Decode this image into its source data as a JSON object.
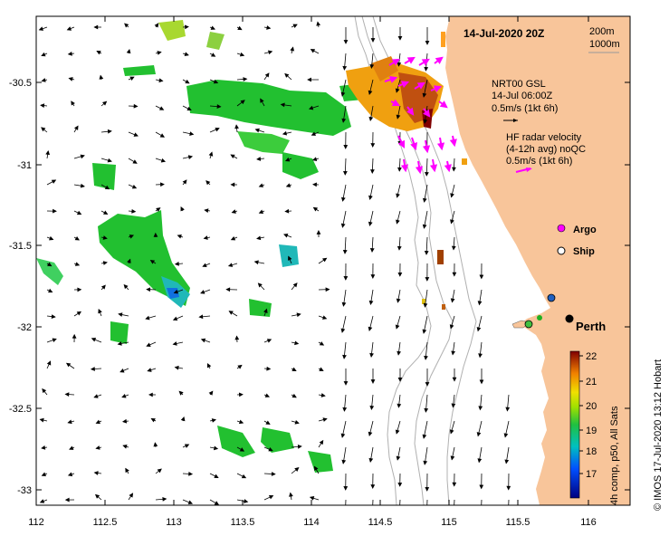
{
  "map": {
    "date_label": "14-Jul-2020 20Z",
    "depth_legend": [
      "200m",
      "1000m"
    ],
    "x_ticks": [
      "112",
      "112.5",
      "113",
      "113.5",
      "114",
      "114.5",
      "115",
      "115.5",
      "116"
    ],
    "y_ticks": [
      "-30.5",
      "-31",
      "-31.5",
      "-32",
      "-32.5",
      "-33"
    ],
    "model_label": [
      "NRT00 GSL",
      "14-Jul 06:00Z",
      "0.5m/s (1kt 6h)"
    ],
    "radar_label": [
      "HF radar velocity",
      "(4-12h avg) noQC",
      "0.5m/s (1kt 6h)"
    ],
    "argo_label": "Argo",
    "ship_label": "Ship",
    "city_label": "Perth",
    "colorbar_ticks": [
      "22",
      "21",
      "20",
      "19",
      "18",
      "17"
    ],
    "colorbar_title": "4h comp, p50, All Sats",
    "credit": "© IMOS 17-Jul-2020 13:12 Hobart",
    "colors": {
      "land": "#f8c59a",
      "arrow": "#000000",
      "radar_arrow": "#ff00ff",
      "argo": "#ff00ff",
      "ship": "#ffffff"
    }
  }
}
